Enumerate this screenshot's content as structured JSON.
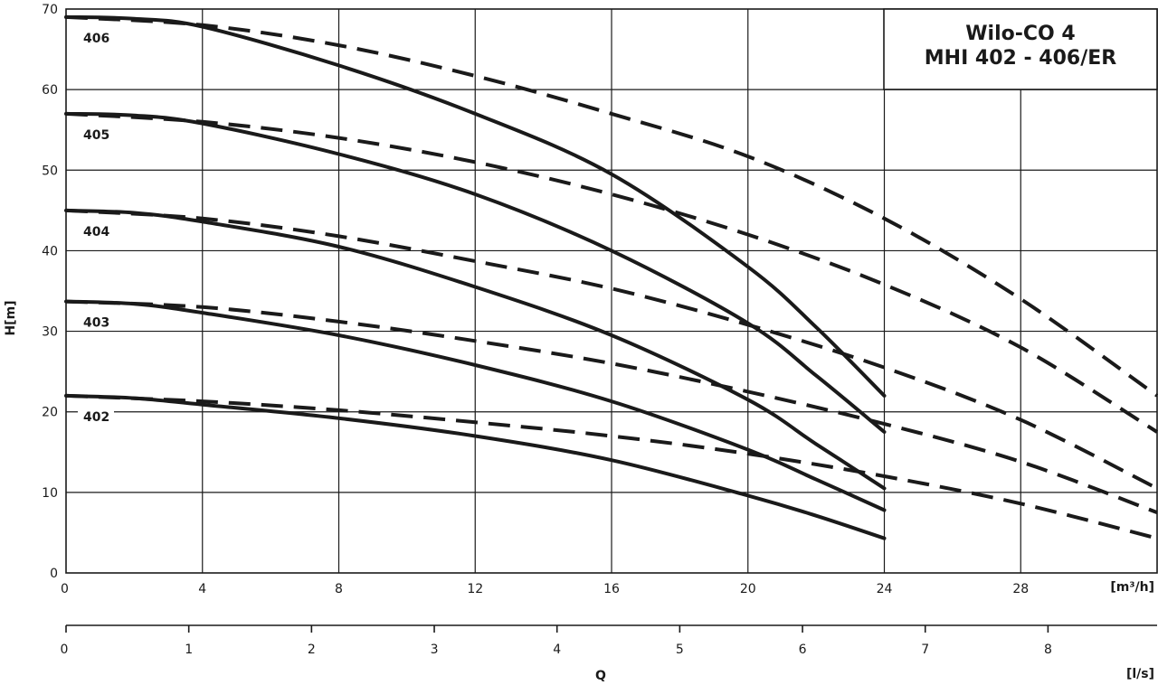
{
  "title": {
    "line1": "Wilo-CO 4",
    "line2": "MHI 402 - 406/ER"
  },
  "axes": {
    "y_label": "H[m]",
    "x_unit_flow": "[m³/h]",
    "x_unit_ls": "[l/s]",
    "x_label": "Q"
  },
  "chart_data": {
    "type": "line",
    "xlim": [
      0,
      32
    ],
    "ylim": [
      0,
      70
    ],
    "grid": true,
    "x_ticks": [
      "0",
      "4",
      "8",
      "12",
      "16",
      "20",
      "24",
      "28"
    ],
    "y_ticks": [
      "0",
      "10",
      "20",
      "30",
      "40",
      "50",
      "60",
      "70"
    ],
    "ls_ticks": [
      "0",
      "1",
      "2",
      "3",
      "4",
      "5",
      "6",
      "7",
      "8"
    ],
    "series": [
      {
        "name": "406",
        "solid": [
          [
            0,
            69
          ],
          [
            2,
            68.8
          ],
          [
            4,
            67.8
          ],
          [
            8,
            63
          ],
          [
            12,
            57
          ],
          [
            16,
            49.5
          ],
          [
            20,
            38
          ],
          [
            22,
            30.5
          ],
          [
            24,
            22
          ]
        ],
        "dashed": [
          [
            0,
            69
          ],
          [
            4,
            68
          ],
          [
            8,
            65.5
          ],
          [
            12,
            61.7
          ],
          [
            16,
            57
          ],
          [
            20,
            51.7
          ],
          [
            24,
            44
          ],
          [
            28,
            34
          ],
          [
            32,
            22
          ]
        ]
      },
      {
        "name": "405",
        "solid": [
          [
            0,
            57
          ],
          [
            2,
            56.8
          ],
          [
            4,
            55.8
          ],
          [
            8,
            52
          ],
          [
            12,
            47
          ],
          [
            16,
            40
          ],
          [
            20,
            31
          ],
          [
            22,
            24.5
          ],
          [
            24,
            17.5
          ]
        ],
        "dashed": [
          [
            0,
            57
          ],
          [
            4,
            56
          ],
          [
            8,
            54
          ],
          [
            12,
            51
          ],
          [
            16,
            47
          ],
          [
            20,
            42
          ],
          [
            24,
            35.8
          ],
          [
            28,
            28
          ],
          [
            32,
            17.5
          ]
        ]
      },
      {
        "name": "404",
        "solid": [
          [
            0,
            45
          ],
          [
            2,
            44.7
          ],
          [
            4,
            43.6
          ],
          [
            8,
            40.5
          ],
          [
            12,
            35.5
          ],
          [
            16,
            29.5
          ],
          [
            20,
            21.5
          ],
          [
            22,
            16
          ],
          [
            24,
            10.5
          ]
        ],
        "dashed": [
          [
            0,
            45
          ],
          [
            4,
            44
          ],
          [
            8,
            41.8
          ],
          [
            12,
            38.7
          ],
          [
            16,
            35.3
          ],
          [
            20,
            30.8
          ],
          [
            24,
            25.5
          ],
          [
            28,
            19
          ],
          [
            32,
            10.5
          ]
        ]
      },
      {
        "name": "403",
        "solid": [
          [
            0,
            33.7
          ],
          [
            2,
            33.4
          ],
          [
            4,
            32.3
          ],
          [
            8,
            29.5
          ],
          [
            12,
            25.8
          ],
          [
            16,
            21.3
          ],
          [
            20,
            15.3
          ],
          [
            22,
            11.6
          ],
          [
            24,
            7.8
          ]
        ],
        "dashed": [
          [
            0,
            33.7
          ],
          [
            4,
            33
          ],
          [
            8,
            31.2
          ],
          [
            12,
            28.8
          ],
          [
            16,
            26
          ],
          [
            20,
            22.5
          ],
          [
            24,
            18.5
          ],
          [
            28,
            13.8
          ],
          [
            32,
            7.5
          ]
        ]
      },
      {
        "name": "402",
        "solid": [
          [
            0,
            22
          ],
          [
            2,
            21.7
          ],
          [
            4,
            20.9
          ],
          [
            8,
            19.2
          ],
          [
            12,
            17
          ],
          [
            16,
            14
          ],
          [
            20,
            9.6
          ],
          [
            22,
            7.1
          ],
          [
            24,
            4.3
          ]
        ],
        "dashed": [
          [
            0,
            22
          ],
          [
            4,
            21.3
          ],
          [
            8,
            20.2
          ],
          [
            12,
            18.7
          ],
          [
            16,
            17
          ],
          [
            20,
            14.8
          ],
          [
            24,
            12
          ],
          [
            28,
            8.6
          ],
          [
            32,
            4.3
          ]
        ]
      }
    ]
  }
}
